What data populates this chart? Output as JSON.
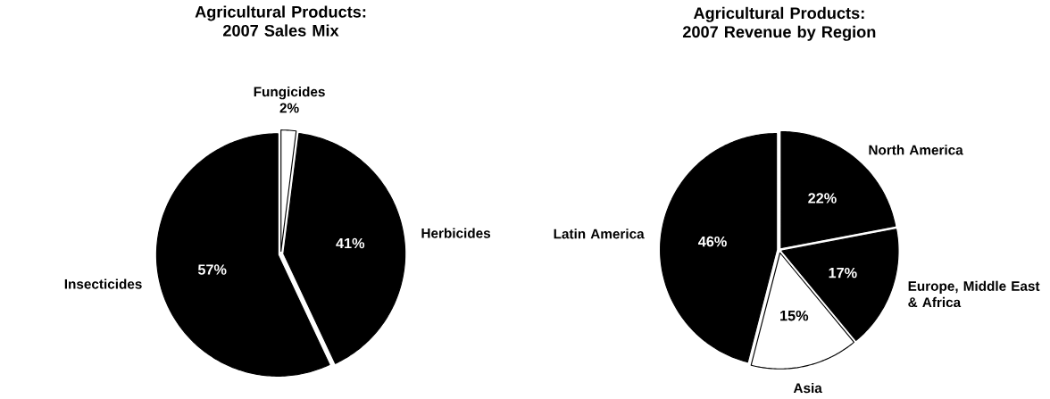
{
  "chart_data": [
    {
      "type": "pie",
      "title": "Agricultural Products: 2007 Sales Mix",
      "categories": [
        "Fungicides",
        "Herbicides",
        "Insecticides"
      ],
      "values": [
        2,
        41,
        57
      ],
      "colors": [
        "#ffffff",
        "#000000",
        "#000000"
      ],
      "value_labels": [
        "2%",
        "41%",
        "57%"
      ]
    },
    {
      "type": "pie",
      "title": "Agricultural Products: 2007 Revenue by Region",
      "categories": [
        "North America",
        "Europe, Middle East & Africa",
        "Asia",
        "Latin America"
      ],
      "values": [
        22,
        17,
        15,
        46
      ],
      "colors": [
        "#000000",
        "#000000",
        "#ffffff",
        "#000000"
      ],
      "value_labels": [
        "22%",
        "17%",
        "15%",
        "46%"
      ]
    }
  ]
}
